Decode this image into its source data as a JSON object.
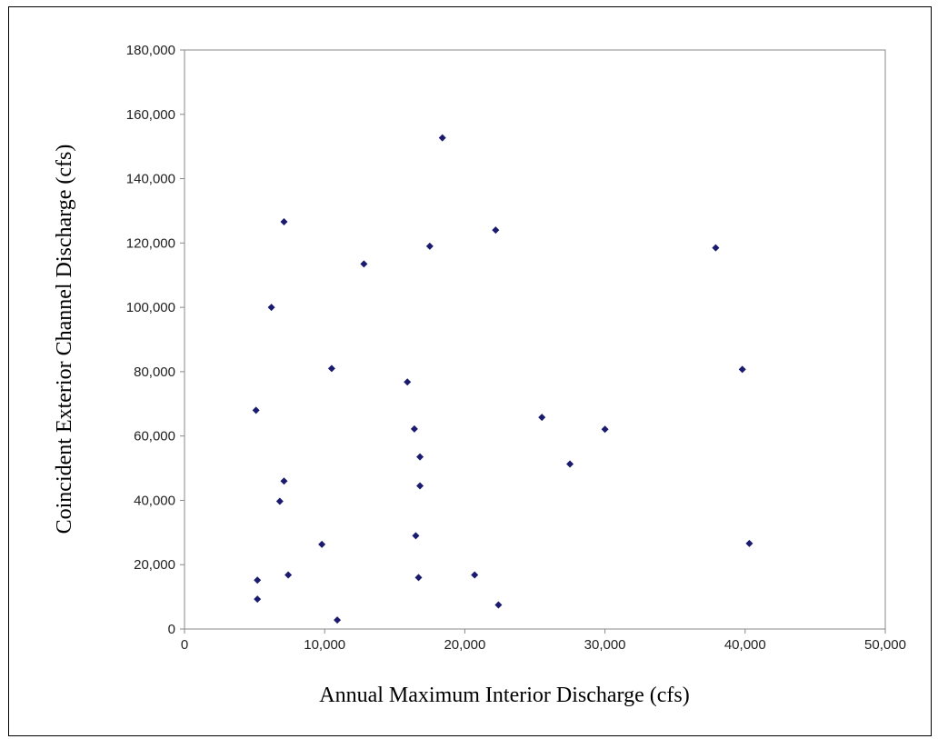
{
  "chart_data": {
    "type": "scatter",
    "title": "",
    "xlabel": "Annual Maximum Interior Discharge (cfs)",
    "ylabel": "Coincident Exterior Channel Discharge (cfs)",
    "xlim": [
      0,
      50000
    ],
    "ylim": [
      0,
      180000
    ],
    "x_ticks": [
      "0",
      "10,000",
      "20,000",
      "30,000",
      "40,000",
      "50,000"
    ],
    "y_ticks": [
      "0",
      "20,000",
      "40,000",
      "60,000",
      "80,000",
      "100,000",
      "120,000",
      "140,000",
      "160,000",
      "180,000"
    ],
    "x_tick_values": [
      0,
      10000,
      20000,
      30000,
      40000,
      50000
    ],
    "y_tick_values": [
      0,
      20000,
      40000,
      60000,
      80000,
      100000,
      120000,
      140000,
      160000,
      180000
    ],
    "grid": false,
    "legend": "none",
    "marker_color": "#1a1a6e",
    "points": [
      {
        "x": 18400,
        "y": 152700
      },
      {
        "x": 7100,
        "y": 126600
      },
      {
        "x": 22200,
        "y": 124000
      },
      {
        "x": 17500,
        "y": 119000
      },
      {
        "x": 37900,
        "y": 118500
      },
      {
        "x": 12800,
        "y": 113500
      },
      {
        "x": 6200,
        "y": 100000
      },
      {
        "x": 10500,
        "y": 81000
      },
      {
        "x": 39800,
        "y": 80700
      },
      {
        "x": 15900,
        "y": 76800
      },
      {
        "x": 5100,
        "y": 68000
      },
      {
        "x": 25500,
        "y": 65800
      },
      {
        "x": 16400,
        "y": 62200
      },
      {
        "x": 30000,
        "y": 62100
      },
      {
        "x": 16800,
        "y": 53500
      },
      {
        "x": 27500,
        "y": 51300
      },
      {
        "x": 7100,
        "y": 46000
      },
      {
        "x": 16800,
        "y": 44500
      },
      {
        "x": 6800,
        "y": 39700
      },
      {
        "x": 16500,
        "y": 29000
      },
      {
        "x": 40300,
        "y": 26600
      },
      {
        "x": 9800,
        "y": 26300
      },
      {
        "x": 7400,
        "y": 16800
      },
      {
        "x": 20700,
        "y": 16800
      },
      {
        "x": 16700,
        "y": 16000
      },
      {
        "x": 5200,
        "y": 15200
      },
      {
        "x": 5200,
        "y": 9300
      },
      {
        "x": 22400,
        "y": 7500
      },
      {
        "x": 10900,
        "y": 2800
      }
    ]
  }
}
